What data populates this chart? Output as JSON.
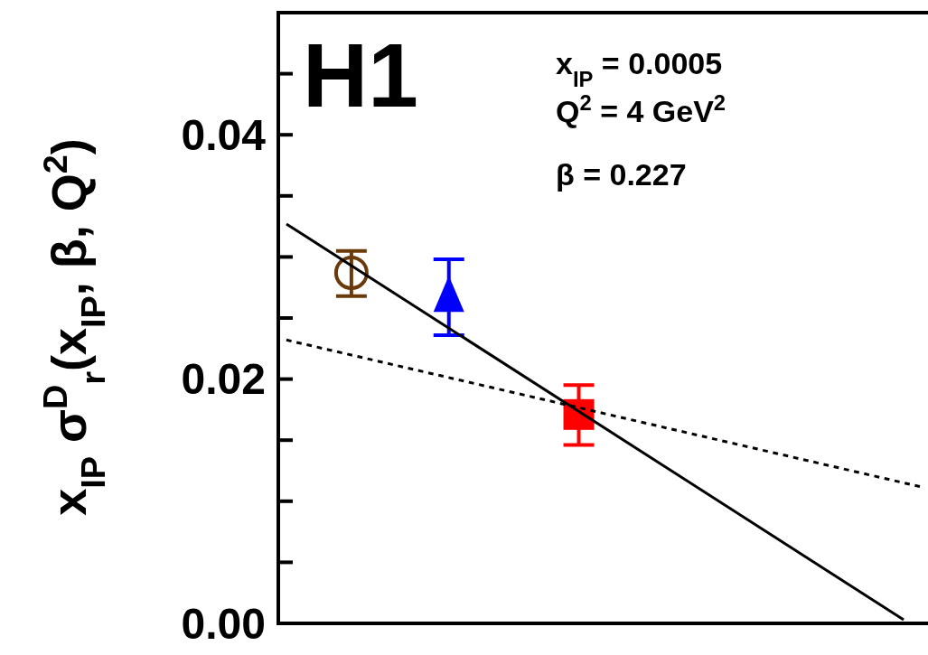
{
  "chart_data": {
    "type": "scatter",
    "ylabel": "x$_{IP}$ σ$^{D}$$_{r}$(x$_{IP}$, β, Q$^{2}$)",
    "annotations": [
      "H1",
      "x$_{IP}$ = 0.0005",
      "Q$^{2}$ = 4 GeV$^{2}$",
      "β   = 0.227"
    ],
    "categories": [
      null,
      null,
      null,
      null,
      null,
      null,
      null,
      null,
      null,
      null,
      null,
      null,
      null,
      null,
      null,
      null,
      null,
      null,
      null,
      null,
      null,
      null,
      null,
      null,
      null,
      null,
      null,
      null,
      null,
      null,
      null,
      null,
      null,
      null,
      null,
      null,
      null,
      null,
      null,
      null
    ],
    "ylim": [
      0,
      0.05
    ],
    "yticks": [
      {
        "value": 0,
        "label": "0.00"
      },
      {
        "value": 0.005,
        "label": null
      },
      {
        "value": 0.01,
        "label": null
      },
      {
        "value": 0.015,
        "label": null
      },
      0.02,
      {
        "value": 0.025,
        "label": null
      },
      {
        "value": 0.03,
        "label": null
      },
      {
        "value": 0.035,
        "label": null
      },
      0.04,
      {
        "value": 0.045,
        "label": null
      }
    ],
    "tick_labels": "y",
    "grid": false,
    "series": [
      {
        "marker": "circle",
        "color": "#6b3a0a",
        "values": [
          null,
          null,
          null,
          null,
          0.0287,
          null,
          null,
          null,
          null,
          null,
          null,
          null,
          null,
          null,
          null,
          null,
          null,
          null,
          null,
          null,
          null,
          null,
          null,
          null,
          null,
          null,
          null,
          null,
          null,
          null,
          null,
          null,
          null,
          null,
          null,
          null,
          null,
          null,
          null,
          null
        ],
        "errors": [
          null,
          null,
          null,
          null,
          [
            0.0268,
            0.0305
          ],
          null,
          null,
          null,
          null,
          null,
          null,
          null,
          null,
          null,
          null,
          null,
          null,
          null,
          null,
          null,
          null,
          null,
          null,
          null,
          null,
          null,
          null,
          null,
          null,
          null,
          null,
          null,
          null,
          null,
          null,
          null,
          null,
          null,
          null,
          null
        ]
      },
      {
        "marker": "triangle",
        "color": "#0000ff",
        "values": [
          null,
          null,
          null,
          null,
          null,
          null,
          null,
          null,
          null,
          null,
          0.0266,
          null,
          null,
          null,
          null,
          null,
          null,
          null,
          null,
          null,
          null,
          null,
          null,
          null,
          null,
          null,
          null,
          null,
          null,
          null,
          null,
          null,
          null,
          null,
          null,
          null,
          null,
          null,
          null,
          null
        ],
        "errors": [
          null,
          null,
          null,
          null,
          null,
          null,
          null,
          null,
          null,
          null,
          [
            0.0236,
            0.0298
          ],
          null,
          null,
          null,
          null,
          null,
          null,
          null,
          null,
          null,
          null,
          null,
          null,
          null,
          null,
          null,
          null,
          null,
          null,
          null,
          null,
          null,
          null,
          null,
          null,
          null,
          null,
          null,
          null,
          null
        ]
      },
      {
        "marker": "square",
        "color": "#ff0000",
        "values": [
          null,
          null,
          null,
          null,
          null,
          null,
          null,
          null,
          null,
          null,
          null,
          null,
          null,
          null,
          null,
          null,
          null,
          null,
          0.0171,
          null,
          null,
          null,
          null,
          null,
          null,
          null,
          null,
          null,
          null,
          null,
          null,
          null,
          null,
          null,
          null,
          null,
          null,
          null,
          null,
          null
        ],
        "errors": [
          null,
          null,
          null,
          null,
          null,
          null,
          null,
          null,
          null,
          null,
          null,
          null,
          null,
          null,
          null,
          null,
          null,
          null,
          [
            0.0146,
            0.0195
          ],
          null,
          null,
          null,
          null,
          null,
          null,
          null,
          null,
          null,
          null,
          null,
          null,
          null,
          null,
          null,
          null,
          null,
          null,
          null,
          null,
          null
        ]
      },
      {
        "type": "line",
        "line_style": "solid",
        "color": "#000000",
        "values": [
          0.0327,
          null,
          null,
          null,
          null,
          null,
          null,
          null,
          null,
          null,
          null,
          null,
          null,
          null,
          null,
          null,
          null,
          null,
          null,
          null,
          null,
          null,
          null,
          null,
          null,
          null,
          null,
          null,
          null,
          null,
          null,
          null,
          null,
          null,
          null,
          null,
          null,
          null,
          0.0003,
          null
        ]
      },
      {
        "type": "line",
        "line_style": "dotted",
        "color": "#000000",
        "values": [
          0.0232,
          null,
          null,
          null,
          null,
          null,
          null,
          null,
          null,
          null,
          null,
          null,
          null,
          null,
          null,
          null,
          null,
          null,
          null,
          null,
          null,
          null,
          null,
          null,
          null,
          null,
          null,
          null,
          null,
          null,
          null,
          null,
          null,
          null,
          null,
          null,
          null,
          null,
          null,
          0.0112
        ]
      }
    ]
  }
}
